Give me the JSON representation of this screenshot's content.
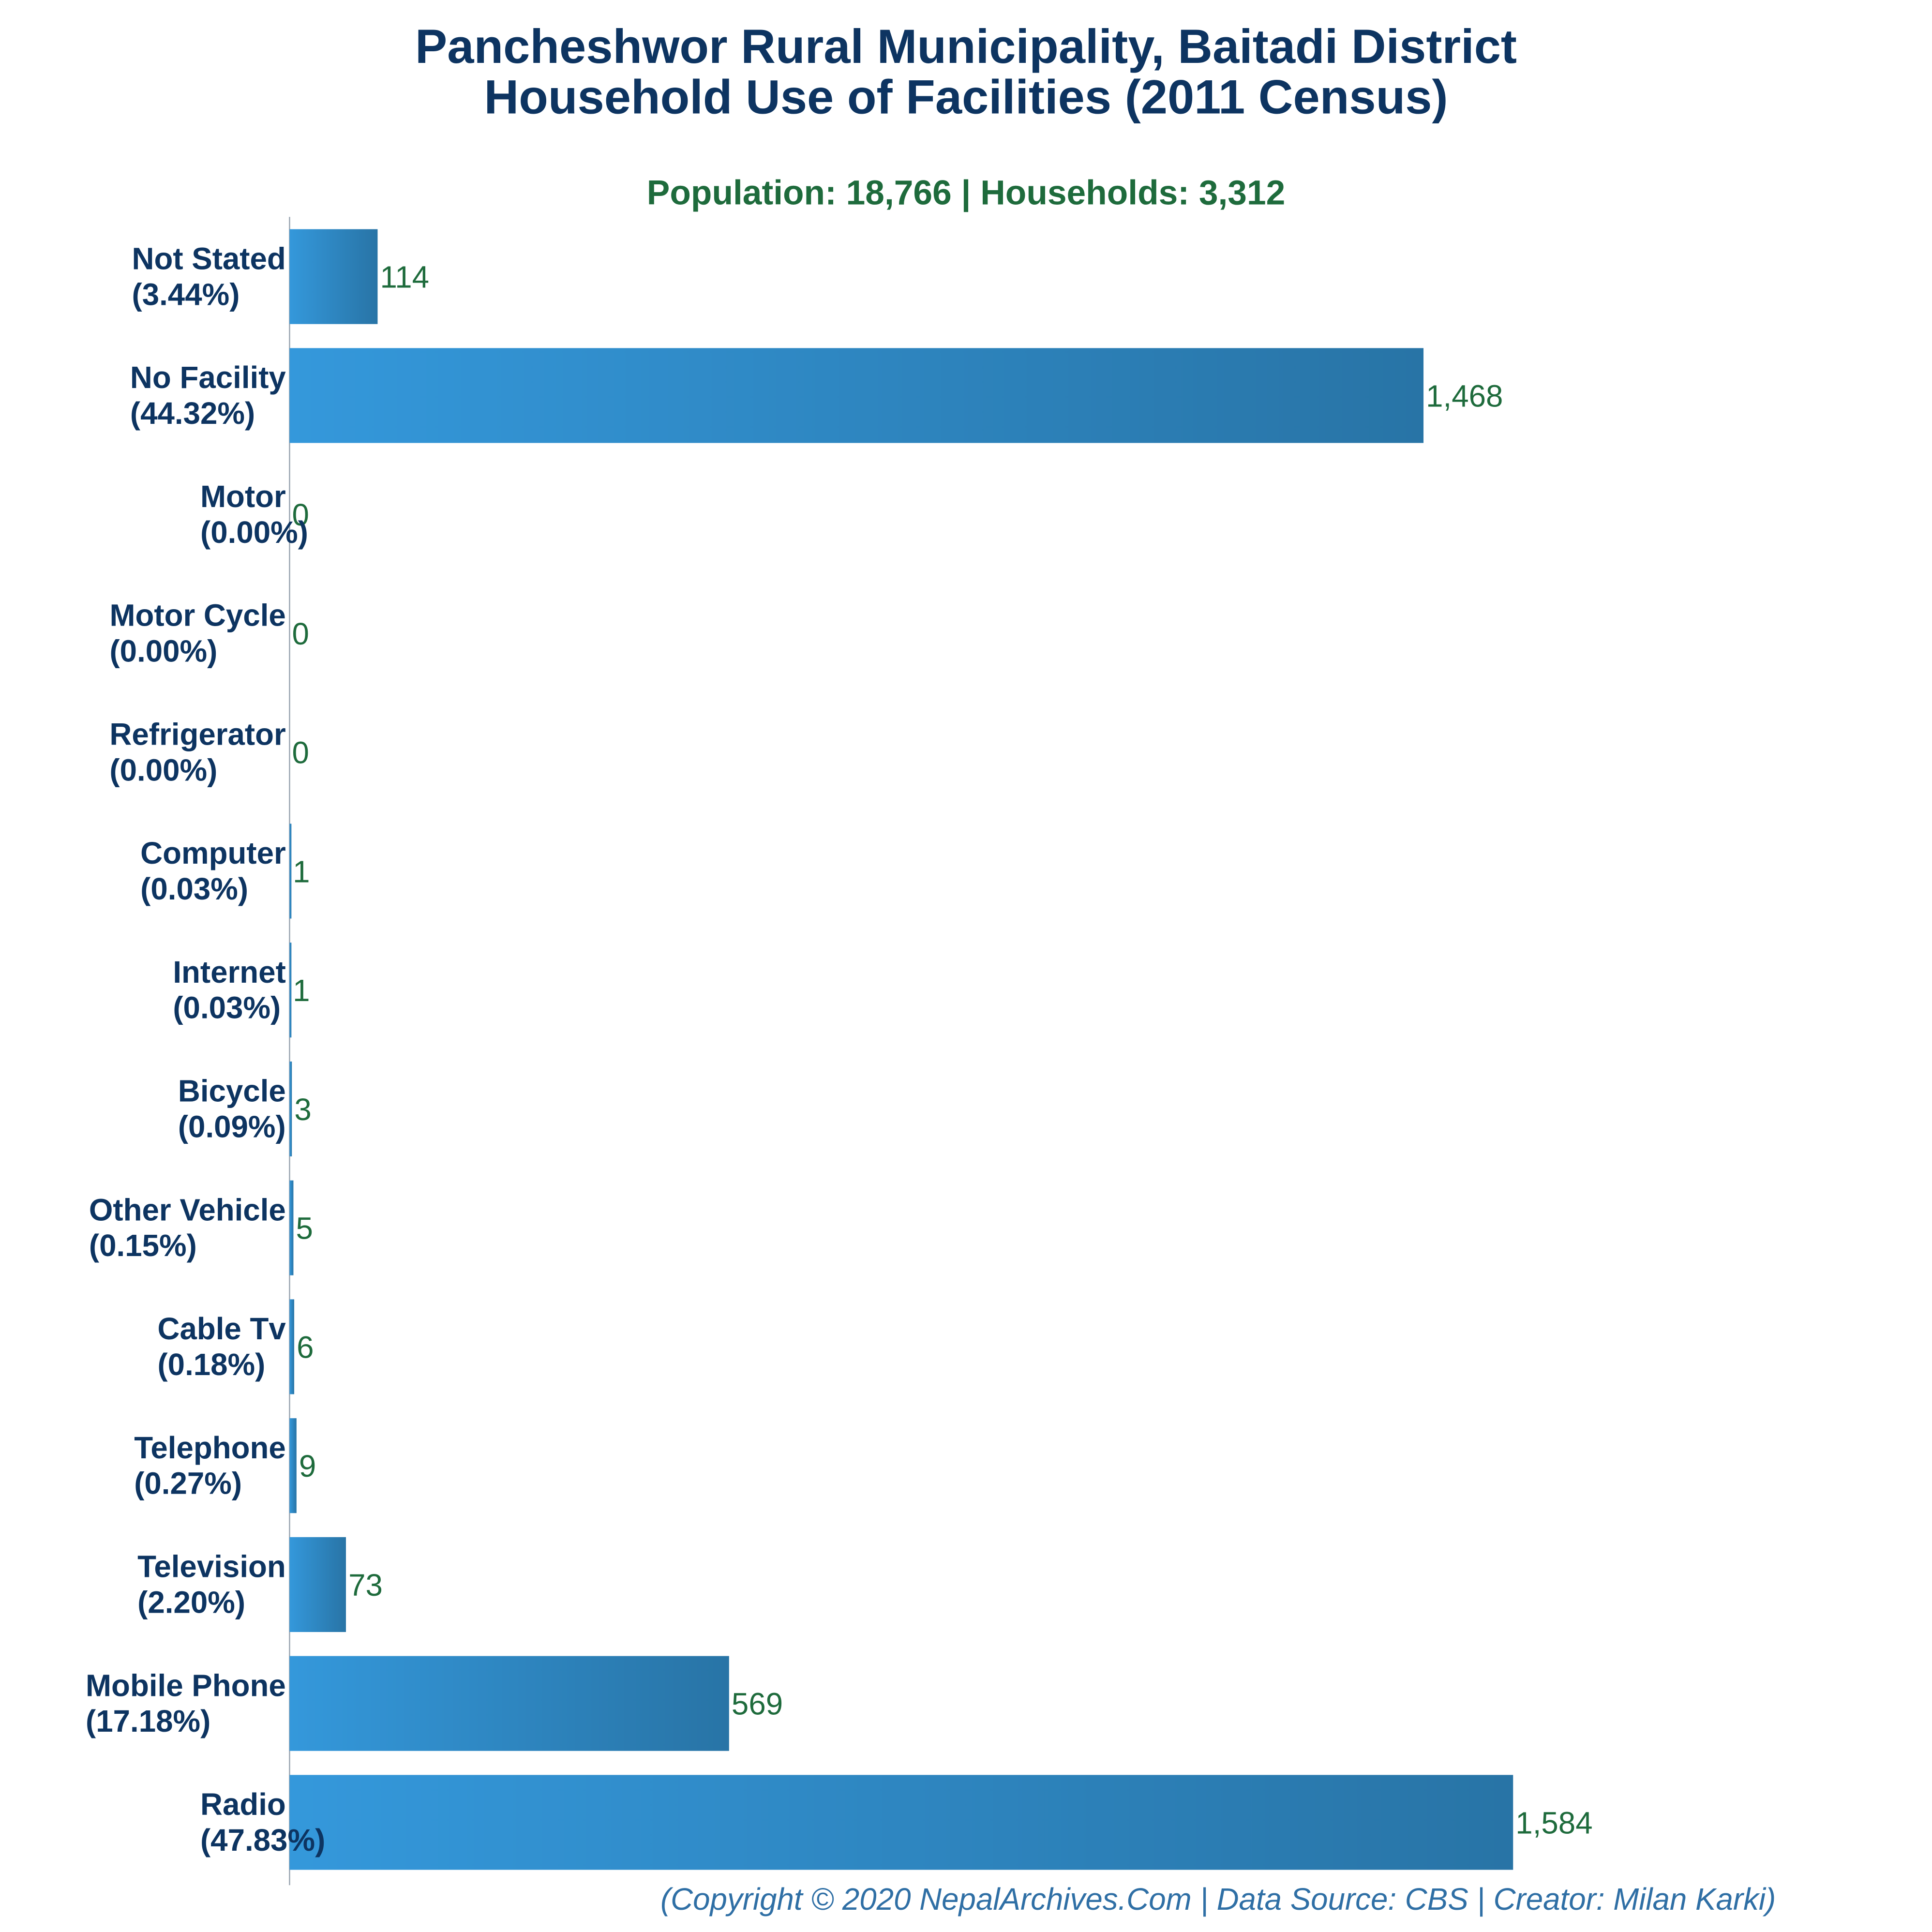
{
  "chart_data": {
    "type": "bar",
    "orientation": "horizontal",
    "title": [
      "Pancheshwor Rural Municipality, Baitadi District",
      "Household Use of Facilities (2011 Census)"
    ],
    "subtitle": "Population: 18,766 | Households: 3,312",
    "categories": [
      "Not Stated",
      "No Facility",
      "Motor",
      "Motor Cycle",
      "Refrigerator",
      "Computer",
      "Internet",
      "Bicycle",
      "Other Vehicle",
      "Cable Tv",
      "Telephone",
      "Television",
      "Mobile Phone",
      "Radio"
    ],
    "percent_labels": [
      "(3.44%)",
      "(44.32%)",
      "(0.00%)",
      "(0.00%)",
      "(0.00%)",
      "(0.03%)",
      "(0.03%)",
      "(0.09%)",
      "(0.15%)",
      "(0.18%)",
      "(0.27%)",
      "(2.20%)",
      "(17.18%)",
      "(47.83%)"
    ],
    "values": [
      114,
      1468,
      0,
      0,
      0,
      1,
      1,
      3,
      5,
      6,
      9,
      73,
      569,
      1584
    ],
    "value_labels": [
      "114",
      "1,468",
      "0",
      "0",
      "0",
      "1",
      "1",
      "3",
      "5",
      "6",
      "9",
      "73",
      "569",
      "1,584"
    ],
    "xlim": [
      0,
      1584
    ],
    "grid": false,
    "legend": "none",
    "footer": "(Copyright © 2020 NepalArchives.Com | Data Source: CBS | Creator: Milan Karki)"
  },
  "colors": {
    "title": "#0d3461",
    "subtitle": "#1e6b3c",
    "bar_start": "#3498db",
    "bar_end": "#2874a6",
    "value_label": "#1e6b3c",
    "footer": "#2f6fa5",
    "axis": "#9aa5b1"
  }
}
